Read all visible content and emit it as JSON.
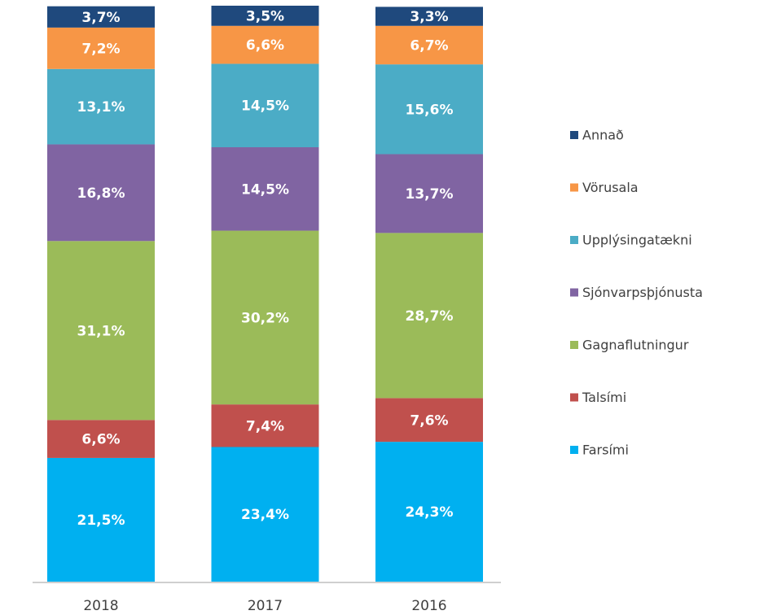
{
  "chart_data": {
    "type": "stacked_bar",
    "categories": [
      "2018",
      "2017",
      "2016"
    ],
    "series": [
      {
        "name": "Farsími",
        "color": "#00b0f0",
        "values": [
          21.5,
          23.4,
          24.3
        ],
        "value_labels": [
          "21,5%",
          "23,4%",
          "24,3%"
        ]
      },
      {
        "name": "Talsími",
        "color": "#c0504d",
        "values": [
          6.6,
          7.4,
          7.6
        ],
        "value_labels": [
          "6,6%",
          "7,4%",
          "7,6%"
        ]
      },
      {
        "name": "Gagnaflutningur",
        "color": "#9bbb59",
        "values": [
          31.1,
          30.2,
          28.7
        ],
        "value_labels": [
          "31,1%",
          "30,2%",
          "28,7%"
        ]
      },
      {
        "name": "Sjónvarpsþjónusta",
        "color": "#8064a2",
        "values": [
          16.8,
          14.5,
          13.7
        ],
        "value_labels": [
          "16,8%",
          "14,5%",
          "13,7%"
        ]
      },
      {
        "name": "Upplýsingatækni",
        "color": "#4bacc6",
        "values": [
          13.1,
          14.5,
          15.6
        ],
        "value_labels": [
          "13,1%",
          "14,5%",
          "15,6%"
        ]
      },
      {
        "name": "Vörusala",
        "color": "#f79646",
        "values": [
          7.2,
          6.6,
          6.7
        ],
        "value_labels": [
          "7,2%",
          "6,6%",
          "6,7%"
        ]
      },
      {
        "name": "Annað",
        "color": "#1f497d",
        "values": [
          3.7,
          3.5,
          3.3
        ],
        "value_labels": [
          "3,7%",
          "3,5%",
          "3,3%"
        ]
      }
    ],
    "legend": "right"
  }
}
